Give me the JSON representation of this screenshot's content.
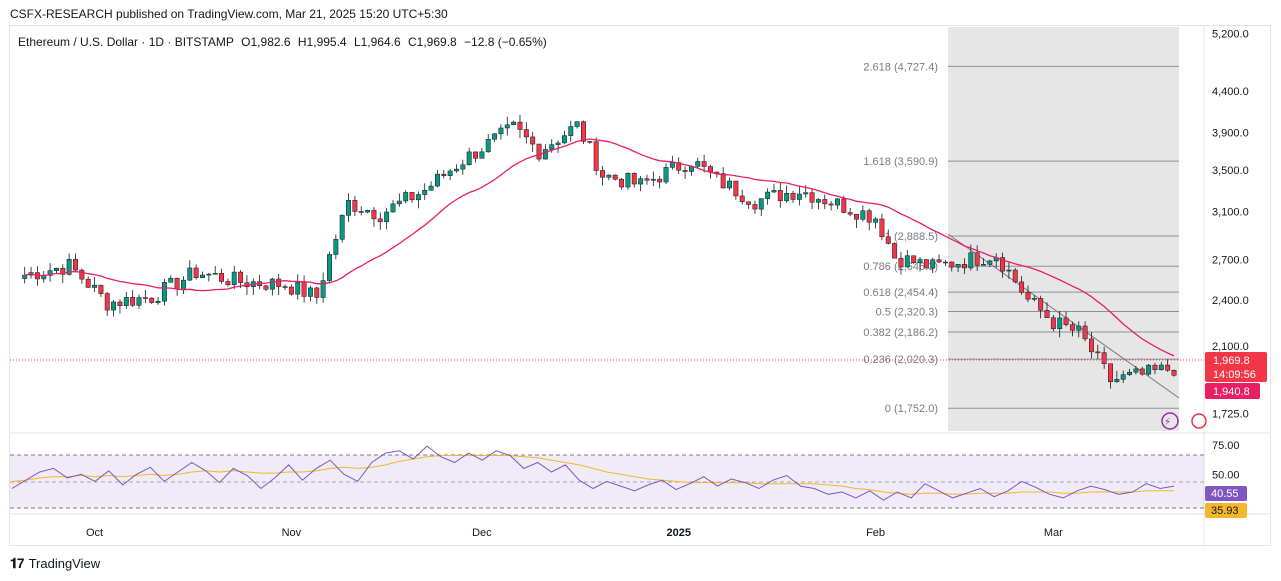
{
  "header": {
    "published": "CSFX-RESEARCH published on TradingView.com, Mar 21, 2025 15:20 UTC+5:30"
  },
  "legend": {
    "symbol": "Ethereum / U.S. Dollar · 1D · BITSTAMP",
    "open": "O1,982.6",
    "high": "H1,995.4",
    "low": "L1,964.6",
    "close": "C1,969.8",
    "change": "−12.8 (−0.65%)"
  },
  "price_tags": {
    "current": "1,969.8",
    "countdown": "14:09:56",
    "ma": "1,940.8"
  },
  "rsi_tags": {
    "rsi": "40.55",
    "ma": "35.93"
  },
  "brand": {
    "name": "TradingView"
  },
  "colors": {
    "up": "#089981",
    "down": "#f23645",
    "ma_line": "#e91e63",
    "rsi_line": "#7e57c2",
    "rsi_ma": "#f5b727",
    "fib_box": "#e8e8e8"
  },
  "chart_data": [
    {
      "type": "candlestick",
      "title": "Ethereum / U.S. Dollar · 1D · BITSTAMP",
      "y_axis_ticks": [
        5200,
        4400,
        3900,
        3500,
        3100,
        2700,
        2400,
        2100,
        1725
      ],
      "y_axis_labels": [
        "5,200.0",
        "4,400.0",
        "3,900.0",
        "3,500.0",
        "3,100.0",
        "2,700.0",
        "2,400.0",
        "2,100.0",
        "1,725.0"
      ],
      "x_axis_labels": [
        "Oct",
        "Nov",
        "Dec",
        "2025",
        "Feb",
        "Mar"
      ],
      "ylim": [
        1640,
        5300
      ],
      "scale": "log",
      "series": [
        {
          "name": "price_close_approx",
          "x": [
            "2024-09-20",
            "2024-09-27",
            "2024-10-03",
            "2024-10-10",
            "2024-10-17",
            "2024-10-24",
            "2024-10-31",
            "2024-11-05",
            "2024-11-10",
            "2024-11-15",
            "2024-11-22",
            "2024-11-28",
            "2024-12-06",
            "2024-12-10",
            "2024-12-16",
            "2024-12-20",
            "2024-12-26",
            "2025-01-03",
            "2025-01-07",
            "2025-01-13",
            "2025-01-20",
            "2025-01-27",
            "2025-02-01",
            "2025-02-04",
            "2025-02-10",
            "2025-02-20",
            "2025-02-25",
            "2025-03-01",
            "2025-03-05",
            "2025-03-10",
            "2025-03-15",
            "2025-03-20"
          ],
          "values": [
            2580,
            2650,
            2380,
            2420,
            2600,
            2530,
            2510,
            2420,
            3180,
            3080,
            3300,
            3600,
            3950,
            3700,
            3980,
            3450,
            3350,
            3600,
            3400,
            3200,
            3300,
            3150,
            3050,
            2720,
            2640,
            2740,
            2400,
            2250,
            2180,
            1900,
            1930,
            1970
          ]
        }
      ],
      "fib_levels": [
        {
          "label": "2.618 (4,727.4)",
          "value": 4727.4
        },
        {
          "label": "1.618 (3,590.9)",
          "value": 3590.9
        },
        {
          "label": "1 (2,888.5)",
          "value": 2888.5
        },
        {
          "label": "0.786 (2,646.3)",
          "value": 2646.3
        },
        {
          "label": "0.618 (2,454.4)",
          "value": 2454.4
        },
        {
          "label": "0.5 (2,320.3)",
          "value": 2320.3
        },
        {
          "label": "0.382 (2,186.2)",
          "value": 2186.2
        },
        {
          "label": "0.236 (2,020.3)",
          "value": 2020.3
        },
        {
          "label": "0 (1,752.0)",
          "value": 1752.0
        }
      ],
      "current_price": 1969.8,
      "ma_value": 1940.8
    },
    {
      "type": "line",
      "title": "",
      "y_axis_ticks": [
        75,
        50
      ],
      "y_axis_labels": [
        "75.00",
        "50.00"
      ],
      "ylim": [
        18,
        80
      ],
      "series": [
        {
          "name": "",
          "values": [
            38,
            45,
            52,
            55,
            47,
            50,
            44,
            53,
            41,
            50,
            56,
            44,
            52,
            60,
            53,
            43,
            55,
            49,
            38,
            47,
            58,
            45,
            55,
            62,
            50,
            44,
            60,
            68,
            70,
            63,
            74,
            65,
            60,
            68,
            62,
            70,
            66,
            55,
            60,
            52,
            58,
            45,
            38,
            44,
            40,
            36,
            41,
            45,
            37,
            42,
            48,
            40,
            46,
            43,
            38,
            45,
            49,
            40,
            38,
            33,
            35,
            30,
            36,
            28,
            35,
            30,
            42,
            36,
            30,
            34,
            38,
            31,
            36,
            44,
            39,
            33,
            30,
            36,
            40,
            37,
            33,
            35,
            42,
            38,
            40
          ]
        },
        {
          "name": "",
          "values": [
            44,
            45,
            47,
            48,
            48,
            49,
            48,
            49,
            48,
            49,
            50,
            49,
            50,
            52,
            53,
            52,
            53,
            52,
            51,
            51,
            52,
            52,
            53,
            55,
            56,
            55,
            56,
            58,
            61,
            63,
            65,
            66,
            66,
            66,
            66,
            66,
            66,
            65,
            64,
            62,
            60,
            58,
            55,
            52,
            50,
            48,
            46,
            45,
            44,
            43,
            43,
            43,
            43,
            43,
            42,
            42,
            42,
            42,
            42,
            41,
            40,
            38,
            37,
            35,
            34,
            33,
            34,
            34,
            33,
            33,
            34,
            34,
            34,
            35,
            35,
            35,
            34,
            34,
            35,
            35,
            35,
            35,
            36,
            36,
            36
          ]
        }
      ]
    }
  ]
}
